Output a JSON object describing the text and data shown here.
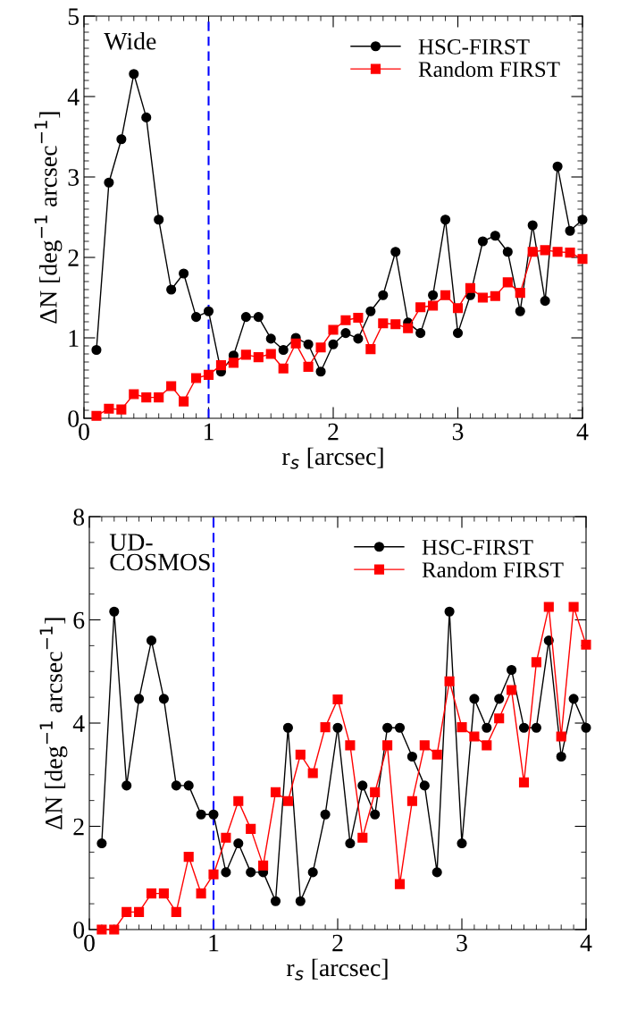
{
  "chart_data": [
    {
      "type": "line",
      "xlabel": "r$_{s}$ [arcsec]",
      "ylabel": "ΔN [deg$^{−1}$ arcsec$^{−1}$]",
      "annotations": [
        "Wide"
      ],
      "x": [
        0.1,
        0.2,
        0.3,
        0.4,
        0.5,
        0.6,
        0.7,
        0.8,
        0.9,
        1.0,
        1.1,
        1.2,
        1.3,
        1.4,
        1.5,
        1.6,
        1.7,
        1.8,
        1.9,
        2.0,
        2.1,
        2.2,
        2.3,
        2.4,
        2.5,
        2.6,
        2.7,
        2.8,
        2.9,
        3.0,
        3.1,
        3.2,
        3.3,
        3.4,
        3.5,
        3.6,
        3.7,
        3.8,
        3.9,
        4.0
      ],
      "xlim": [
        0,
        4
      ],
      "xticks": [
        0,
        1,
        2,
        3,
        4
      ],
      "ylim": [
        0,
        5
      ],
      "yticks": [
        0,
        1,
        2,
        3,
        4,
        5
      ],
      "legend": "top right",
      "line_style": "solid",
      "ref_lines": [
        {
          "axis": "x",
          "value": 1,
          "color": "#0000ff",
          "line_style": "dashed"
        }
      ],
      "series": [
        {
          "name": "HSC-FIRST",
          "color": "#000000",
          "marker": "circle",
          "values": [
            0.85,
            2.93,
            3.47,
            4.28,
            3.74,
            2.47,
            1.6,
            1.8,
            1.26,
            1.33,
            0.58,
            0.78,
            1.26,
            1.26,
            0.99,
            0.85,
            1.0,
            0.92,
            0.58,
            0.92,
            1.06,
            0.99,
            1.33,
            1.53,
            2.07,
            1.19,
            1.06,
            1.53,
            2.47,
            1.06,
            1.53,
            2.2,
            2.27,
            2.07,
            1.33,
            2.4,
            1.46,
            3.13,
            2.33,
            2.47
          ]
        },
        {
          "name": "Random FIRST",
          "color": "#ff0000",
          "marker": "square",
          "values": [
            0.03,
            0.12,
            0.11,
            0.3,
            0.26,
            0.26,
            0.4,
            0.21,
            0.5,
            0.54,
            0.66,
            0.69,
            0.79,
            0.76,
            0.8,
            0.62,
            0.93,
            0.64,
            0.88,
            1.1,
            1.22,
            1.25,
            0.86,
            1.18,
            1.17,
            1.12,
            1.38,
            1.4,
            1.53,
            1.37,
            1.62,
            1.5,
            1.52,
            1.69,
            1.56,
            2.07,
            2.09,
            2.07,
            2.06,
            1.98
          ]
        }
      ]
    },
    {
      "type": "line",
      "xlabel": "r$_{s}$ [arcsec]",
      "ylabel": "ΔN [deg$^{−1}$ arcsec$^{−1}$]",
      "annotations": [
        "UD-\nCOSMOS"
      ],
      "x": [
        0.1,
        0.2,
        0.3,
        0.4,
        0.5,
        0.6,
        0.7,
        0.8,
        0.9,
        1.0,
        1.1,
        1.2,
        1.3,
        1.4,
        1.5,
        1.6,
        1.7,
        1.8,
        1.9,
        2.0,
        2.1,
        2.2,
        2.3,
        2.4,
        2.5,
        2.6,
        2.7,
        2.8,
        2.9,
        3.0,
        3.1,
        3.2,
        3.3,
        3.4,
        3.5,
        3.6,
        3.7,
        3.8,
        3.9,
        4.0
      ],
      "xlim": [
        0,
        4
      ],
      "xticks": [
        0,
        1,
        2,
        3,
        4
      ],
      "ylim": [
        0,
        8
      ],
      "yticks": [
        0,
        2,
        4,
        6,
        8
      ],
      "legend": "top right",
      "line_style": "solid",
      "ref_lines": [
        {
          "axis": "x",
          "value": 1,
          "color": "#0000ff",
          "line_style": "dashed"
        }
      ],
      "series": [
        {
          "name": "HSC-FIRST",
          "color": "#000000",
          "marker": "circle",
          "values": [
            1.67,
            6.16,
            2.79,
            4.47,
            5.6,
            4.47,
            2.79,
            2.79,
            2.23,
            2.23,
            1.11,
            1.67,
            1.11,
            1.11,
            0.55,
            3.91,
            0.55,
            1.11,
            2.23,
            3.91,
            1.67,
            2.79,
            2.23,
            3.91,
            3.91,
            3.35,
            2.79,
            1.11,
            6.16,
            1.67,
            4.47,
            3.91,
            4.47,
            5.03,
            3.91,
            3.91,
            5.6,
            3.35,
            4.47,
            3.91
          ]
        },
        {
          "name": "Random FIRST",
          "color": "#ff0000",
          "marker": "square",
          "values": [
            0.0,
            0.0,
            0.34,
            0.34,
            0.7,
            0.7,
            0.34,
            1.41,
            0.7,
            1.07,
            1.78,
            2.49,
            1.95,
            1.24,
            2.66,
            2.49,
            3.39,
            3.03,
            3.92,
            4.46,
            3.57,
            1.78,
            2.66,
            3.57,
            0.88,
            2.49,
            3.57,
            3.39,
            4.81,
            3.92,
            3.74,
            3.57,
            4.09,
            4.64,
            2.85,
            5.18,
            6.25,
            3.74,
            6.25,
            5.52
          ]
        }
      ]
    }
  ]
}
